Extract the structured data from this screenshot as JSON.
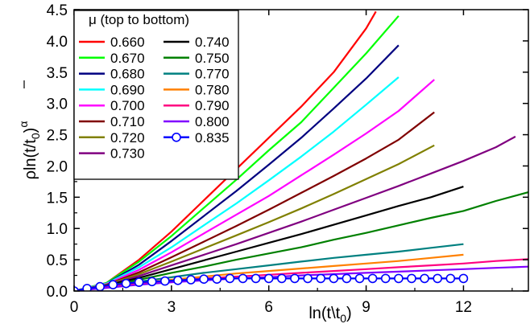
{
  "chart_data": {
    "type": "line",
    "xlabel": "ln(t\\t",
    "xlabel_sub": "0",
    "xlabel_close": ")",
    "ylabel": "ρln(t/t",
    "ylabel_sub": "0",
    "ylabel_close": ")",
    "ylabel_sup": "α",
    "xlim": [
      0,
      14
    ],
    "ylim": [
      0,
      4.5
    ],
    "x_ticks": [
      0,
      3,
      6,
      9,
      12
    ],
    "y_ticks": [
      0.0,
      0.5,
      1.0,
      1.5,
      2.0,
      2.5,
      3.0,
      3.5,
      4.0,
      4.5
    ],
    "x_tick_labels": [
      "0",
      "3",
      "6",
      "9",
      "12"
    ],
    "y_tick_labels": [
      "0.0",
      "0.5",
      "1.0",
      "1.5",
      "2.0",
      "2.5",
      "3.0",
      "3.5",
      "4.0",
      "4.5"
    ],
    "grid": false,
    "legend": {
      "title": "μ (top to bottom)",
      "placement": "top-left"
    },
    "series": [
      {
        "name": "0.660",
        "color": "#ff0000",
        "x": [
          0,
          1,
          2,
          3,
          4,
          5,
          6,
          7,
          8,
          9,
          9.3
        ],
        "y": [
          0,
          0.13,
          0.5,
          0.95,
          1.45,
          1.95,
          2.45,
          2.95,
          3.5,
          4.2,
          4.47
        ]
      },
      {
        "name": "0.670",
        "color": "#00ff00",
        "x": [
          0,
          1,
          2,
          3,
          4,
          5,
          6,
          7,
          8,
          9,
          10
        ],
        "y": [
          0,
          0.13,
          0.47,
          0.88,
          1.33,
          1.78,
          2.25,
          2.7,
          3.25,
          3.8,
          4.4
        ]
      },
      {
        "name": "0.680",
        "color": "#000080",
        "x": [
          0,
          1,
          2,
          3,
          4,
          5,
          6,
          7,
          8,
          9,
          10
        ],
        "y": [
          0,
          0.12,
          0.42,
          0.8,
          1.2,
          1.6,
          2.02,
          2.45,
          2.92,
          3.4,
          3.93
        ]
      },
      {
        "name": "0.690",
        "color": "#00ffff",
        "x": [
          0,
          1,
          2,
          3,
          4,
          5,
          6,
          7,
          8,
          9,
          10
        ],
        "y": [
          0,
          0.12,
          0.38,
          0.7,
          1.05,
          1.4,
          1.77,
          2.15,
          2.55,
          2.98,
          3.42
        ]
      },
      {
        "name": "0.700",
        "color": "#ff00ff",
        "x": [
          0,
          1,
          2,
          3,
          4,
          5,
          6,
          7,
          8,
          9,
          10,
          11.1
        ],
        "y": [
          0,
          0.11,
          0.34,
          0.62,
          0.92,
          1.22,
          1.52,
          1.85,
          2.18,
          2.52,
          2.88,
          3.38
        ]
      },
      {
        "name": "0.710",
        "color": "#800000",
        "x": [
          0,
          1,
          2,
          3,
          4,
          5,
          6,
          7,
          8,
          9,
          10,
          11.1
        ],
        "y": [
          0,
          0.1,
          0.3,
          0.54,
          0.79,
          1.04,
          1.3,
          1.57,
          1.84,
          2.12,
          2.42,
          2.86
        ]
      },
      {
        "name": "0.720",
        "color": "#808000",
        "x": [
          0,
          1,
          2,
          3,
          4,
          5,
          6,
          7,
          8,
          9,
          10,
          11.1
        ],
        "y": [
          0,
          0.1,
          0.27,
          0.47,
          0.68,
          0.89,
          1.1,
          1.32,
          1.55,
          1.79,
          2.03,
          2.33
        ]
      },
      {
        "name": "0.730",
        "color": "#800080",
        "x": [
          0,
          1,
          2,
          3,
          4,
          5,
          6,
          7,
          8,
          9,
          10,
          11,
          12,
          13,
          13.6
        ],
        "y": [
          0,
          0.09,
          0.24,
          0.41,
          0.58,
          0.75,
          0.93,
          1.11,
          1.3,
          1.49,
          1.68,
          1.88,
          2.08,
          2.3,
          2.47
        ]
      },
      {
        "name": "0.740",
        "color": "#000000",
        "x": [
          0,
          1,
          2,
          3,
          4,
          5,
          6,
          7,
          8,
          9,
          10,
          11,
          12
        ],
        "y": [
          0,
          0.09,
          0.21,
          0.35,
          0.49,
          0.63,
          0.77,
          0.91,
          1.06,
          1.21,
          1.36,
          1.5,
          1.67
        ]
      },
      {
        "name": "0.750",
        "color": "#008000",
        "x": [
          0,
          1,
          2,
          3,
          4,
          5,
          6,
          7,
          8,
          9,
          10,
          11,
          12,
          13,
          14
        ],
        "y": [
          0,
          0.08,
          0.18,
          0.29,
          0.39,
          0.5,
          0.6,
          0.7,
          0.82,
          0.93,
          1.05,
          1.17,
          1.28,
          1.44,
          1.58
        ]
      },
      {
        "name": "0.770",
        "color": "#008080",
        "x": [
          0,
          1,
          2,
          3,
          4,
          5,
          6,
          7,
          8,
          9,
          10,
          11,
          12
        ],
        "y": [
          0,
          0.07,
          0.15,
          0.22,
          0.29,
          0.35,
          0.41,
          0.47,
          0.53,
          0.58,
          0.63,
          0.69,
          0.75
        ]
      },
      {
        "name": "0.780",
        "color": "#ff8000",
        "x": [
          0,
          1,
          2,
          3,
          4,
          5,
          6,
          7,
          8,
          9,
          10,
          11,
          12
        ],
        "y": [
          0,
          0.06,
          0.13,
          0.18,
          0.23,
          0.28,
          0.32,
          0.36,
          0.4,
          0.44,
          0.48,
          0.53,
          0.58
        ]
      },
      {
        "name": "0.790",
        "color": "#ff0080",
        "x": [
          0,
          1,
          2,
          3,
          4,
          5,
          6,
          7,
          8,
          9,
          10,
          11,
          12,
          13,
          14
        ],
        "y": [
          0,
          0.06,
          0.11,
          0.16,
          0.2,
          0.23,
          0.26,
          0.29,
          0.32,
          0.35,
          0.38,
          0.41,
          0.44,
          0.48,
          0.51
        ]
      },
      {
        "name": "0.800",
        "color": "#8000ff",
        "x": [
          0,
          1,
          2,
          3,
          4,
          5,
          6,
          7,
          8,
          9,
          10,
          11,
          12,
          13,
          14
        ],
        "y": [
          0,
          0.05,
          0.1,
          0.14,
          0.17,
          0.2,
          0.22,
          0.25,
          0.27,
          0.29,
          0.31,
          0.33,
          0.35,
          0.37,
          0.39
        ]
      },
      {
        "name": "0.835",
        "color": "#0000ff",
        "marker": "open-circle",
        "x": [
          0,
          0.4,
          0.8,
          1.2,
          1.6,
          2.0,
          2.4,
          2.8,
          3.2,
          3.6,
          4.0,
          4.4,
          4.8,
          5.2,
          5.6,
          6.0,
          6.4,
          6.8,
          7.2,
          7.6,
          8.0,
          8.4,
          8.8,
          9.2,
          9.6,
          10.0,
          10.4,
          10.8,
          11.2,
          11.6,
          12.0
        ],
        "y": [
          0,
          0.04,
          0.07,
          0.1,
          0.12,
          0.14,
          0.15,
          0.16,
          0.17,
          0.18,
          0.19,
          0.19,
          0.2,
          0.2,
          0.2,
          0.2,
          0.2,
          0.2,
          0.2,
          0.2,
          0.2,
          0.2,
          0.2,
          0.2,
          0.2,
          0.2,
          0.2,
          0.2,
          0.2,
          0.2,
          0.2
        ]
      }
    ]
  }
}
